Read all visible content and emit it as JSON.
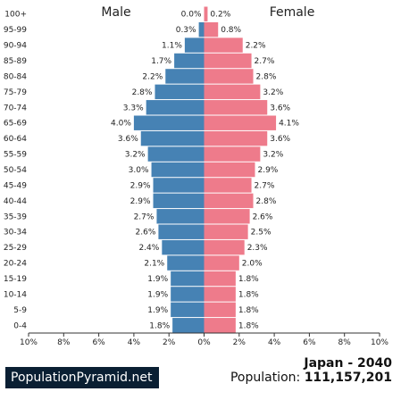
{
  "chart_data": {
    "type": "bar",
    "orientation": "horizontal-pyramid",
    "left_label": "Male",
    "right_label": "Female",
    "categories": [
      "100+",
      "95-99",
      "90-94",
      "85-89",
      "80-84",
      "75-79",
      "70-74",
      "65-69",
      "60-64",
      "55-59",
      "50-54",
      "45-49",
      "40-44",
      "35-39",
      "30-34",
      "25-29",
      "20-24",
      "15-19",
      "10-14",
      "5-9",
      "0-4"
    ],
    "series": [
      {
        "name": "Male",
        "color": "#4682b4",
        "values": [
          0.0,
          0.3,
          1.1,
          1.7,
          2.2,
          2.8,
          3.3,
          4.0,
          3.6,
          3.2,
          3.0,
          2.9,
          2.9,
          2.7,
          2.6,
          2.4,
          2.1,
          1.9,
          1.9,
          1.9,
          1.8
        ],
        "labels": [
          "0.0%",
          "0.3%",
          "1.1%",
          "1.7%",
          "2.2%",
          "2.8%",
          "3.3%",
          "4.0%",
          "3.6%",
          "3.2%",
          "3.0%",
          "2.9%",
          "2.9%",
          "2.7%",
          "2.6%",
          "2.4%",
          "2.1%",
          "1.9%",
          "1.9%",
          "1.9%",
          "1.8%"
        ]
      },
      {
        "name": "Female",
        "color": "#ee7b8b",
        "values": [
          0.2,
          0.8,
          2.2,
          2.7,
          2.8,
          3.2,
          3.6,
          4.1,
          3.6,
          3.2,
          2.9,
          2.7,
          2.8,
          2.6,
          2.5,
          2.3,
          2.0,
          1.8,
          1.8,
          1.8,
          1.8
        ],
        "labels": [
          "0.2%",
          "0.8%",
          "2.2%",
          "2.7%",
          "2.8%",
          "3.2%",
          "3.6%",
          "4.1%",
          "3.6%",
          "3.2%",
          "2.9%",
          "2.7%",
          "2.8%",
          "2.6%",
          "2.5%",
          "2.3%",
          "2.0%",
          "1.8%",
          "1.8%",
          "1.8%",
          "1.8%"
        ]
      }
    ],
    "xlim": [
      -10,
      10
    ],
    "xticks": [
      -10,
      -8,
      -6,
      -4,
      -2,
      0,
      2,
      4,
      6,
      8,
      10
    ],
    "xtick_labels": [
      "10%",
      "8%",
      "6%",
      "4%",
      "2%",
      "0%",
      "2%",
      "4%",
      "6%",
      "8%",
      "10%"
    ],
    "grid": false
  },
  "footer": {
    "brand": "PopulationPyramid.net",
    "title": "Japan - 2040",
    "population_label": "Population:",
    "population_value": "111,157,201"
  }
}
